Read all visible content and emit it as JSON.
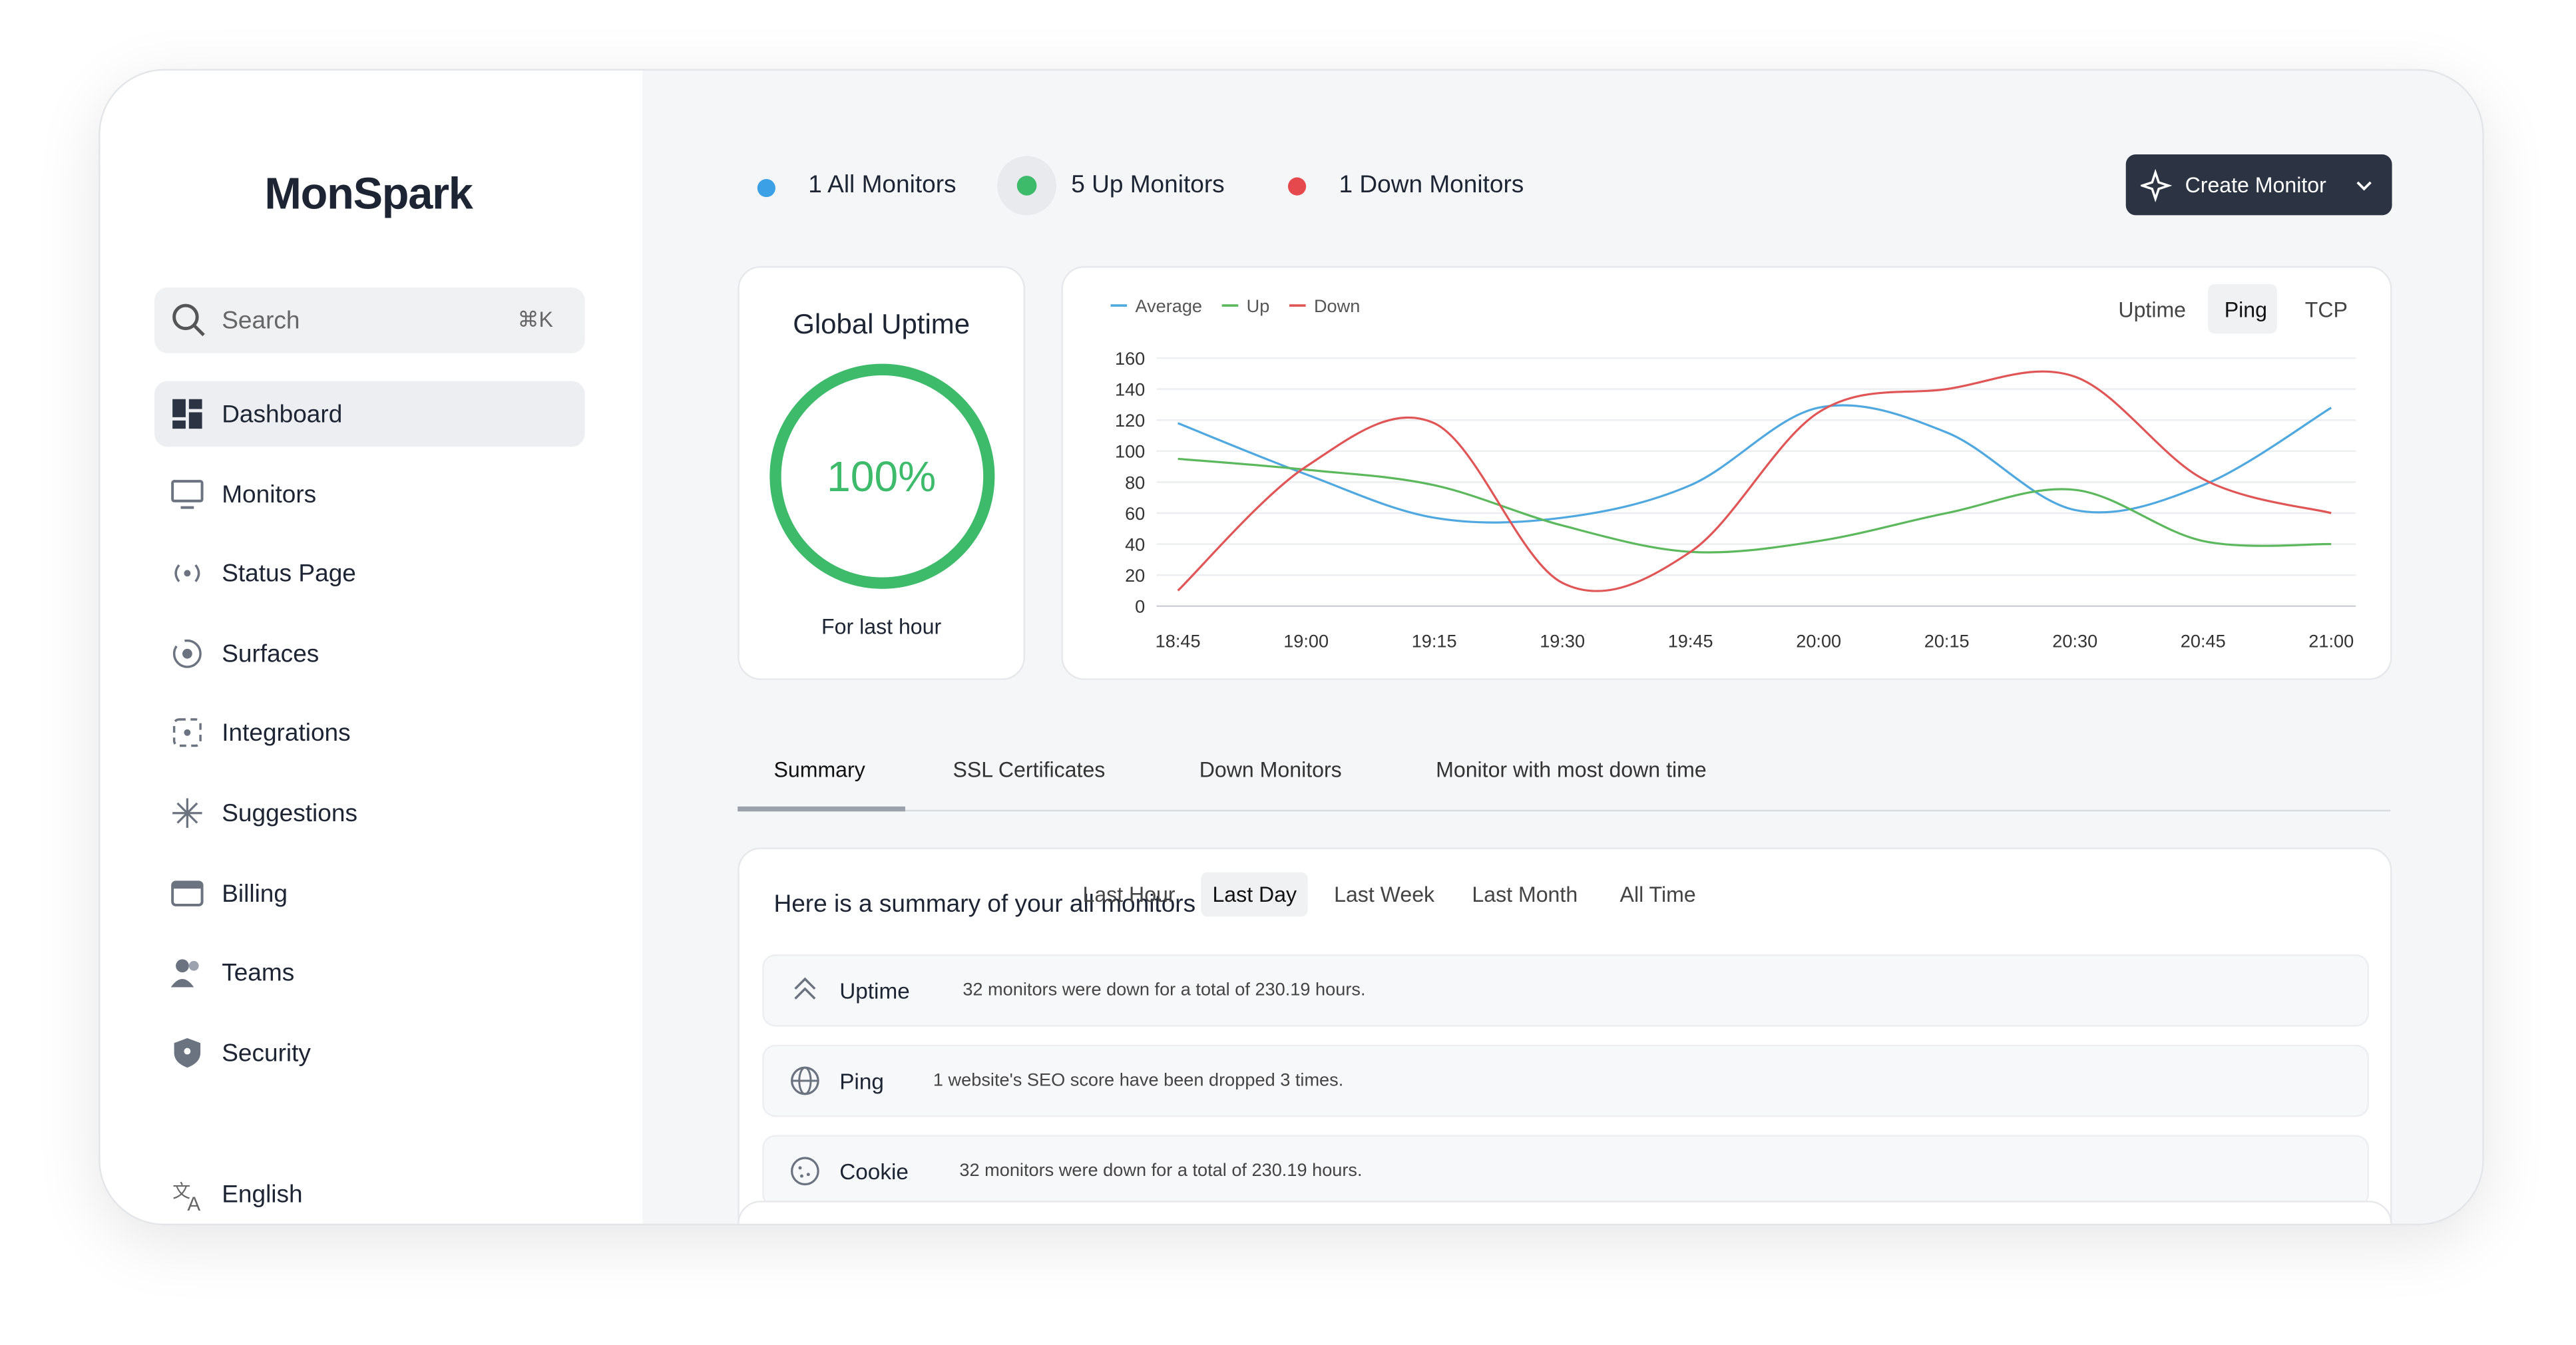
{
  "sidebar": {
    "brand": "MonSpark",
    "search": "Search",
    "shortcut": "⌘K",
    "nav": [
      "Dashboard",
      "Monitors",
      "Status Page",
      "Surfaces",
      "Integrations",
      "Suggestions",
      "Billing",
      "Teams",
      "Security"
    ],
    "language": "English"
  },
  "header": {
    "stats": [
      "1 All Monitors",
      "5 Up Monitors",
      "1 Down Monitors"
    ],
    "button": "Create Monitor"
  },
  "uptime": {
    "title": "Global Uptime",
    "value": "100%",
    "caption": "For last hour"
  },
  "chart_data": {
    "type": "line",
    "tabs": [
      "Uptime",
      "Ping",
      "TCP"
    ],
    "categories": [
      "18:45",
      "19:00",
      "19:15",
      "19:30",
      "19:45",
      "20:00",
      "20:15",
      "20:30",
      "20:45",
      "21:00"
    ],
    "series": [
      {
        "name": "Average",
        "color": "#4fa8df",
        "values": [
          118,
          85,
          57,
          57,
          78,
          128,
          112,
          62,
          78,
          128
        ]
      },
      {
        "name": "Up",
        "color": "#5cb85c",
        "values": [
          95,
          88,
          78,
          52,
          35,
          42,
          60,
          75,
          42,
          40
        ]
      },
      {
        "name": "Down",
        "color": "#e05656",
        "values": [
          10,
          90,
          118,
          15,
          35,
          125,
          140,
          148,
          82,
          60
        ]
      }
    ],
    "ylim": [
      0,
      160
    ],
    "yticks": [
      0,
      20,
      40,
      60,
      80,
      100,
      120,
      140,
      160
    ],
    "grid": true,
    "legend": "top-left"
  },
  "tabs": [
    "Summary",
    "SSL Certificates",
    "Down Monitors",
    "Monitor with most down time"
  ],
  "summary": {
    "title": "Here is a summary of your all monitors",
    "ranges": [
      "Last Hour",
      "Last Day",
      "Last Week",
      "Last Month",
      "All Time"
    ],
    "rows": [
      {
        "label": "Uptime",
        "text": "32 monitors were down for a total of 230.19 hours."
      },
      {
        "label": "Ping",
        "text": "1 website's SEO score have been dropped 3 times."
      },
      {
        "label": "Cookie",
        "text": "32 monitors were down for a total of 230.19 hours."
      }
    ]
  }
}
